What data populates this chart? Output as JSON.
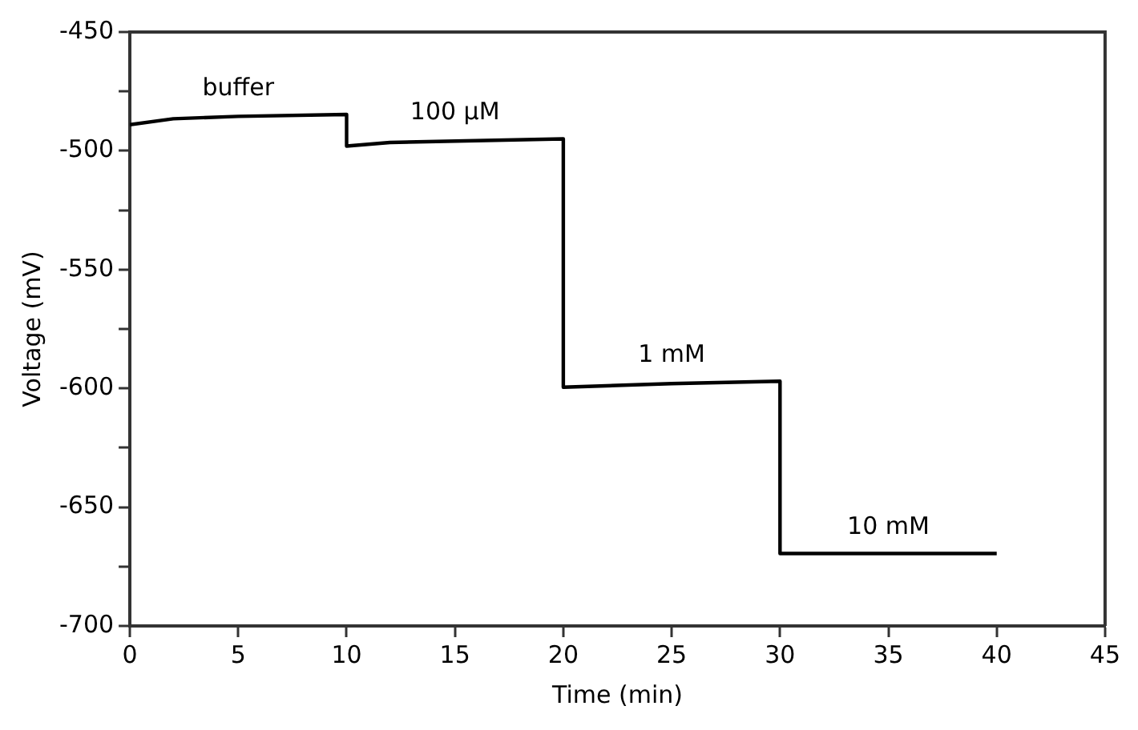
{
  "chart_data": {
    "type": "line",
    "xlabel": "Time (min)",
    "ylabel": "Voltage (mV)",
    "x": [
      0,
      2,
      5,
      10,
      10,
      12,
      20,
      20,
      25,
      30,
      30,
      40
    ],
    "series": [
      {
        "color": "#000000",
        "values": [
          -489,
          -486.5,
          -485.5,
          -484.7,
          -498,
          -496.5,
          -495,
          -599.5,
          -598,
          -597,
          -669.5,
          -669.5
        ]
      }
    ],
    "xlim": [
      0,
      45
    ],
    "xticks": [
      0,
      5,
      10,
      15,
      20,
      25,
      30,
      35,
      40,
      45
    ],
    "ylim": [
      -700,
      -450
    ],
    "yticks": [
      -700,
      {
        "value": -675,
        "label": null
      },
      -650,
      {
        "value": -625,
        "label": null
      },
      -600,
      {
        "value": -575,
        "label": null
      },
      -550,
      {
        "value": -525,
        "label": null
      },
      -500,
      {
        "value": -475,
        "label": null
      },
      -450
    ],
    "annotations": [
      "buffer",
      "100 μM",
      "1 mM",
      "10 mM"
    ],
    "grid": false,
    "legend": false,
    "marker": "none",
    "line_style": "solid"
  }
}
